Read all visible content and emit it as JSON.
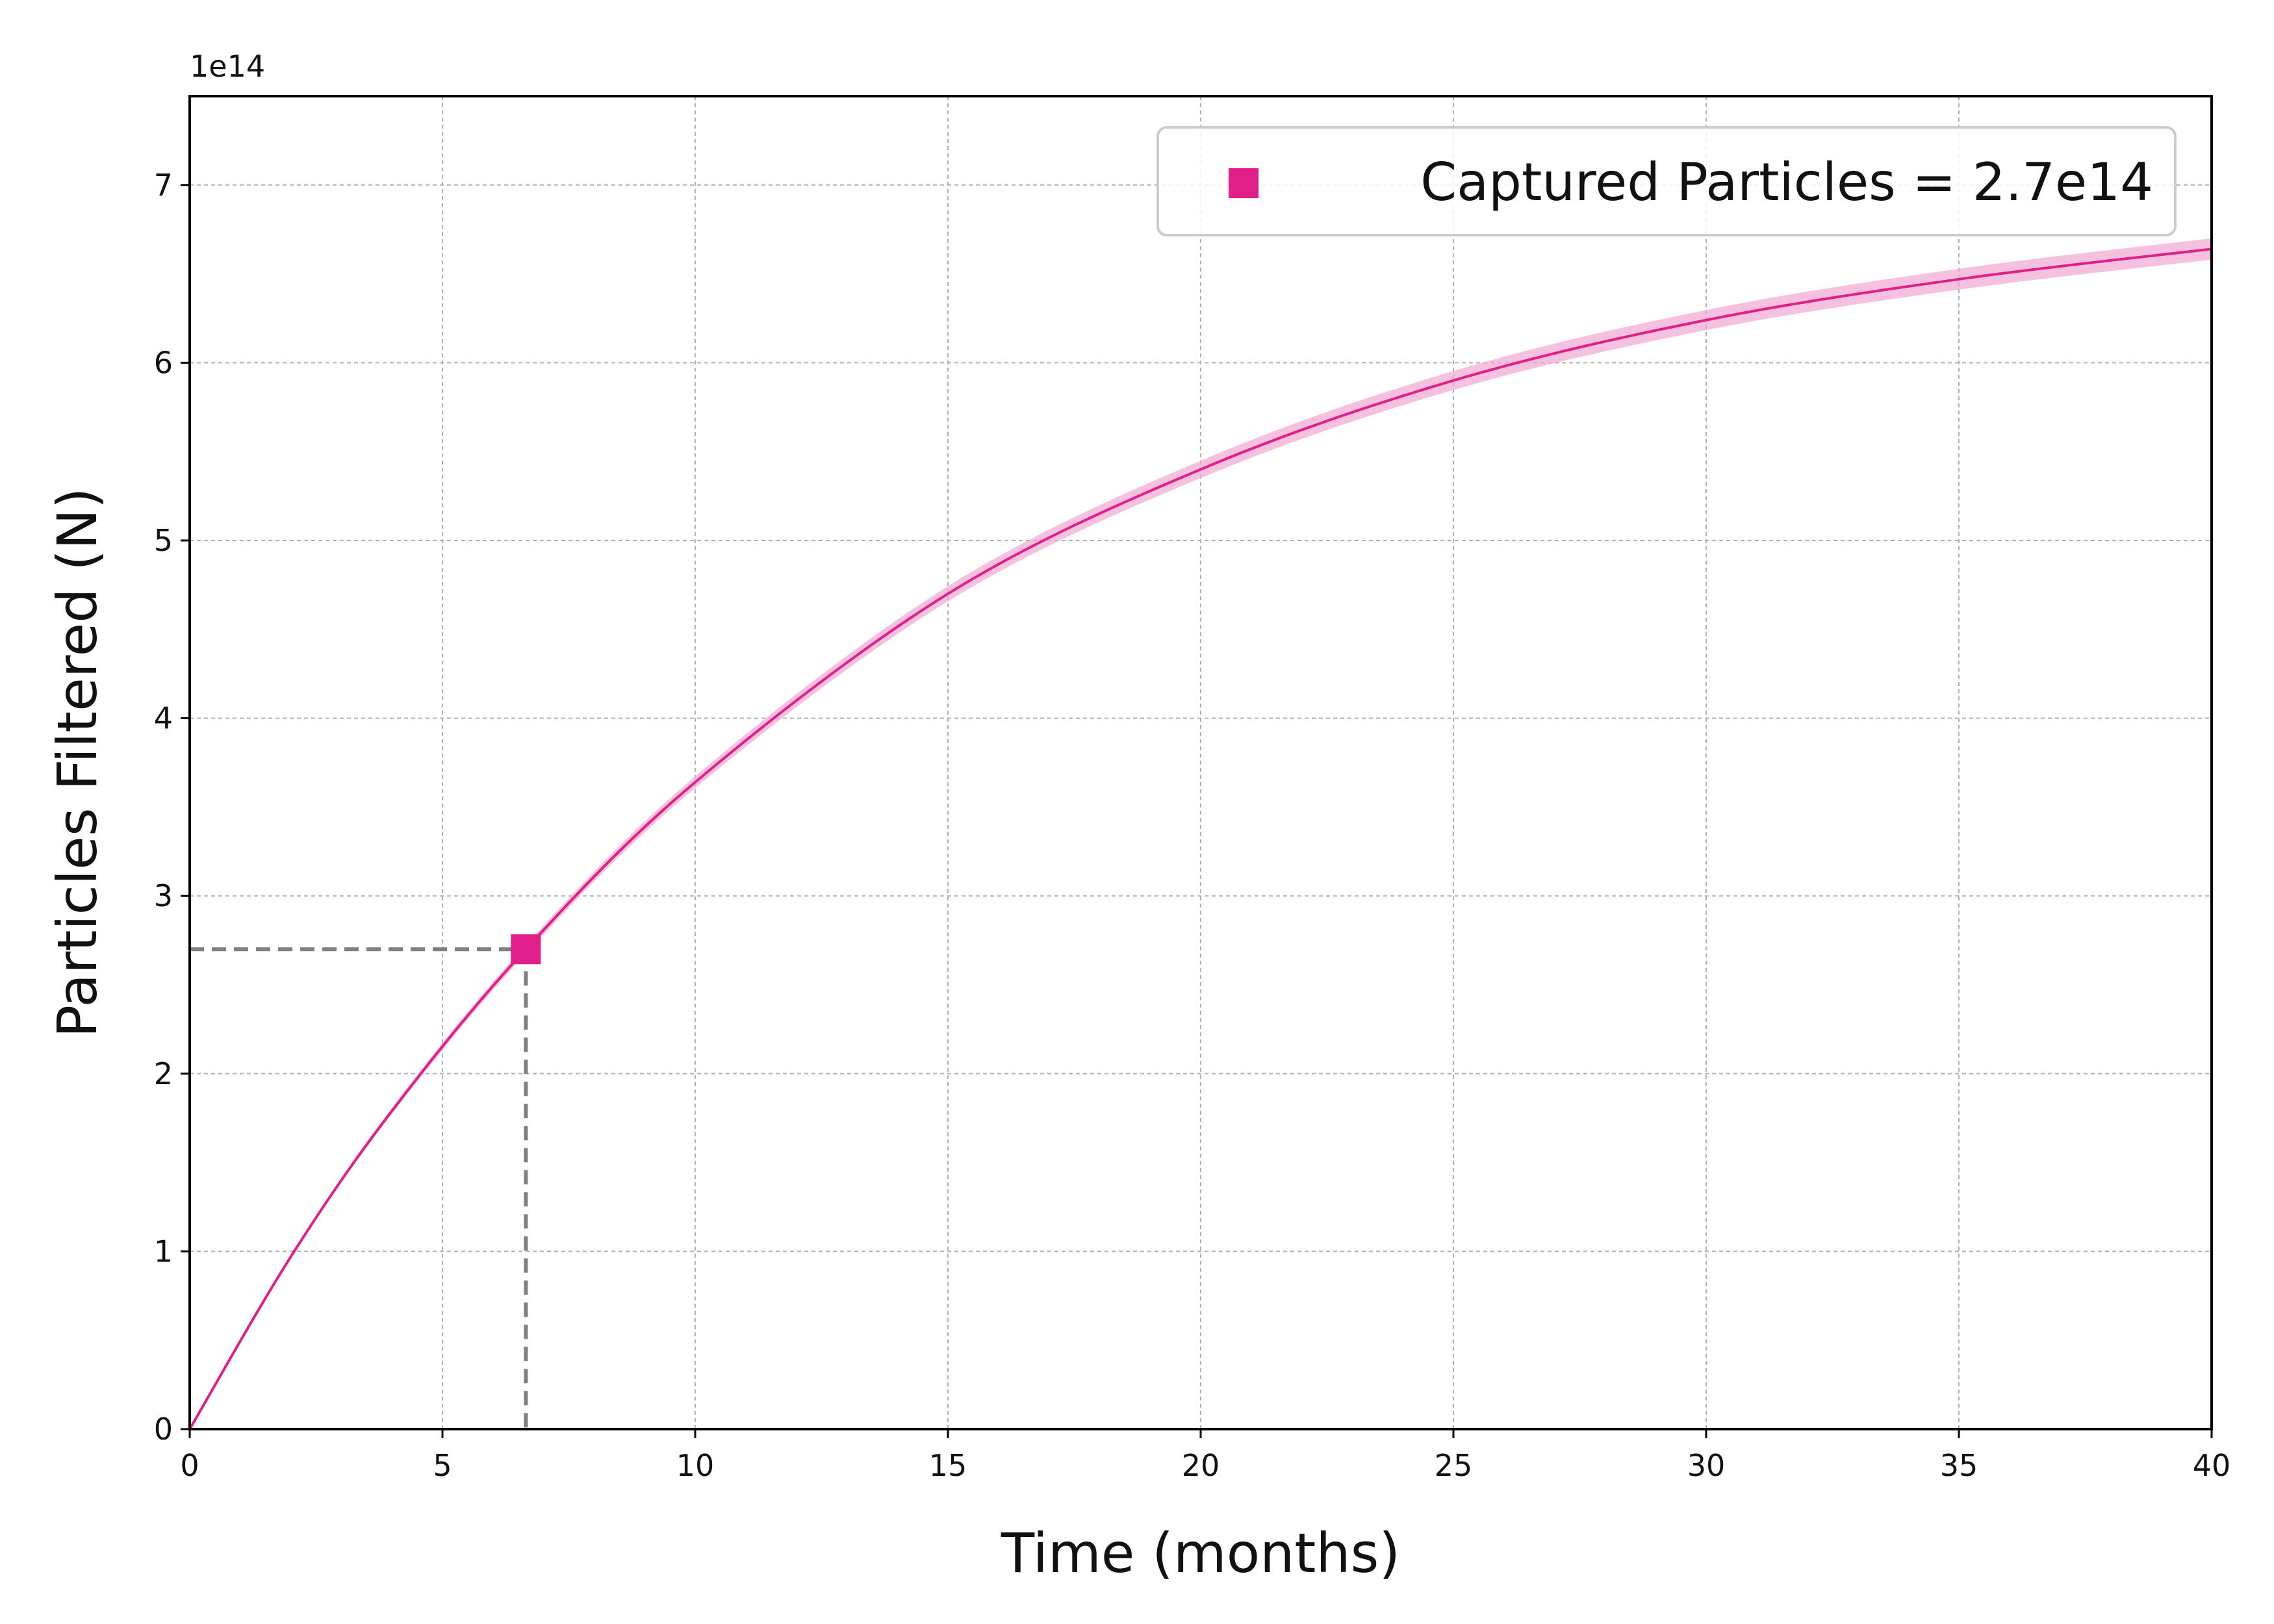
{
  "chart_data": {
    "type": "line",
    "xlabel": "Time (months)",
    "ylabel": "Particles Filtered (N)",
    "y_offset_label": "1e14",
    "xlim": [
      0,
      40
    ],
    "ylim": [
      0,
      7.5
    ],
    "x_ticks": [
      0,
      5,
      10,
      15,
      20,
      25,
      30,
      35,
      40
    ],
    "y_ticks": [
      0,
      1,
      2,
      3,
      4,
      5,
      6,
      7
    ],
    "x_tick_labels": [
      "0",
      "5",
      "10",
      "15",
      "20",
      "25",
      "30",
      "35",
      "40"
    ],
    "y_tick_labels": [
      "0",
      "1",
      "2",
      "3",
      "4",
      "5",
      "6",
      "7"
    ],
    "grid": true,
    "legend_position": "top-right",
    "legend_label": "Captured Particles = 2.7e14",
    "curve": {
      "x": [
        0,
        2,
        4,
        6.65,
        10,
        15,
        20,
        25,
        30,
        35,
        40
      ],
      "y": [
        0,
        0.97,
        1.79,
        2.7,
        3.64,
        4.7,
        5.4,
        5.9,
        6.24,
        6.47,
        6.64
      ],
      "band_halfwidth": 0.06
    },
    "marker": {
      "x": 6.65,
      "y": 2.7
    },
    "colors": {
      "line": "#e01f8a",
      "band": "#f2a6d0",
      "marker": "#e01f8a",
      "guide": "#808080",
      "grid": "#b0b0b0"
    }
  }
}
